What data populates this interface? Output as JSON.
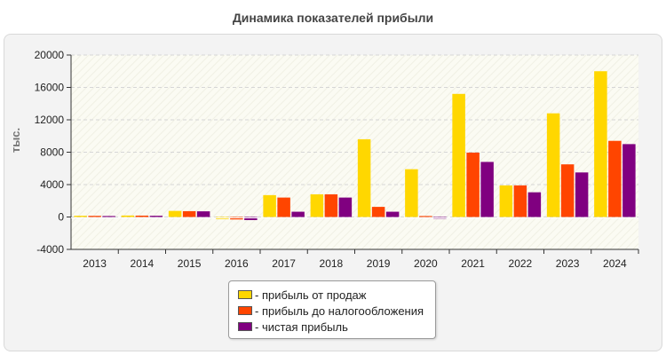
{
  "chart_data": {
    "type": "bar",
    "title": "Динамика показателей прибыли",
    "ylabel": "тыс.",
    "xlabel": "",
    "ylim": [
      -4000,
      20000
    ],
    "yticks": [
      -4000,
      0,
      4000,
      8000,
      12000,
      16000,
      20000
    ],
    "grid": true,
    "legend_position": "bottom-center",
    "categories": [
      "2013",
      "2014",
      "2015",
      "2016",
      "2017",
      "2018",
      "2019",
      "2020",
      "2021",
      "2022",
      "2023",
      "2024"
    ],
    "series": [
      {
        "name": "- прибыль от продаж",
        "color": "#ffd700",
        "values": [
          150,
          180,
          750,
          -250,
          2700,
          2800,
          9600,
          5900,
          15200,
          3900,
          12800,
          18000
        ]
      },
      {
        "name": "- прибыль до налогообложения",
        "color": "#ff4500",
        "values": [
          140,
          170,
          720,
          -300,
          2400,
          2800,
          1250,
          120,
          7950,
          3900,
          6500,
          9400
        ]
      },
      {
        "name": "- чистая прибыль",
        "color": "#800080",
        "values": [
          120,
          150,
          700,
          -380,
          650,
          2400,
          650,
          -200,
          6800,
          3050,
          5500,
          9000
        ]
      }
    ]
  }
}
